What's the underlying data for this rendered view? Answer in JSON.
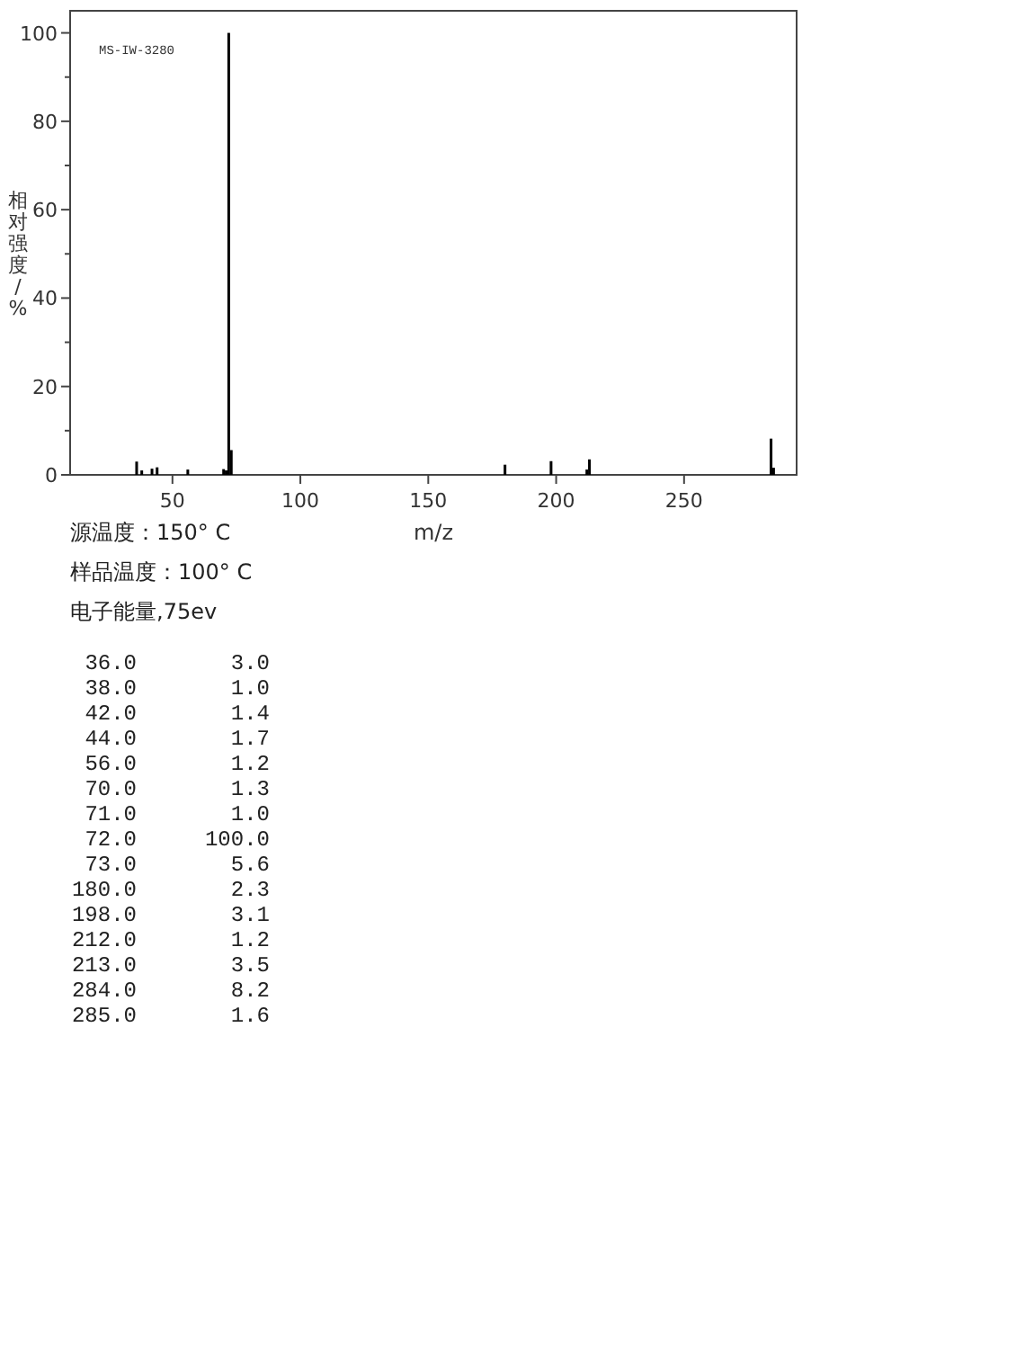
{
  "chart_data": {
    "type": "bar",
    "ylabel": "相对强度/%",
    "xlabel": "m/z",
    "annotations": [
      "MS-IW-3280",
      "源温度：150° C",
      "样品温度：100° C",
      "电子能量,75ev",
      "36.0",
      "3.0",
      "38.0",
      "1.0",
      "42.0",
      "1.4",
      "44.0",
      "1.7",
      "56.0",
      "1.2",
      "70.0",
      "1.3",
      "71.0",
      "1.0",
      "72.0",
      "100.0",
      "73.0",
      "5.6",
      "180.0",
      "2.3",
      "198.0",
      "3.1",
      "212.0",
      "1.2",
      "213.0",
      "3.5",
      "284.0",
      "8.2",
      "285.0",
      "1.6"
    ],
    "x": [
      36,
      38,
      42,
      44,
      56,
      70,
      71,
      72,
      73,
      180,
      198,
      212,
      213,
      284,
      285
    ],
    "values": [
      3.0,
      1.0,
      1.4,
      1.7,
      1.2,
      1.3,
      1.0,
      100.0,
      5.6,
      2.3,
      3.1,
      1.2,
      3.5,
      8.2,
      1.6
    ],
    "color": "#000000",
    "xlim": [
      10,
      294
    ],
    "xticks": [
      50,
      100,
      150,
      200,
      250
    ],
    "ylim": [
      0,
      105
    ],
    "yticks": [
      0,
      {
        "value": 10,
        "label": null
      },
      20,
      {
        "value": 30,
        "label": null
      },
      40,
      {
        "value": 50,
        "label": null
      },
      60,
      {
        "value": 70,
        "label": null
      },
      80,
      {
        "value": 90,
        "label": null
      },
      100
    ]
  }
}
